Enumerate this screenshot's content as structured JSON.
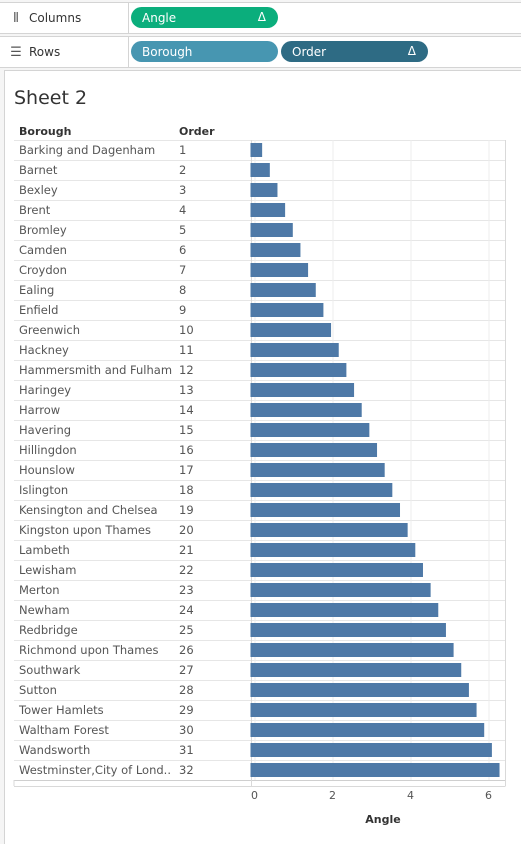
{
  "shelves": {
    "columns": {
      "label": "Columns",
      "icon": "columns-icon",
      "pills": [
        {
          "label": "Angle",
          "symbol": "Δ",
          "color": "#0bae7c"
        }
      ]
    },
    "rows": {
      "label": "Rows",
      "icon": "rows-icon",
      "pills": [
        {
          "label": "Borough",
          "color": "#4796b1"
        },
        {
          "label": "Order",
          "symbol": "Δ",
          "color": "#2e6b84"
        }
      ]
    }
  },
  "sheet": {
    "title": "Sheet 2"
  },
  "chart_data": {
    "type": "bar",
    "orientation": "horizontal",
    "row_headers": [
      "Borough",
      "Order"
    ],
    "categories": [
      "Barking and Dagenham",
      "Barnet",
      "Bexley",
      "Brent",
      "Bromley",
      "Camden",
      "Croydon",
      "Ealing",
      "Enfield",
      "Greenwich",
      "Hackney",
      "Hammersmith and Fulham",
      "Haringey",
      "Harrow",
      "Havering",
      "Hillingdon",
      "Hounslow",
      "Islington",
      "Kensington and Chelsea",
      "Kingston upon Thames",
      "Lambeth",
      "Lewisham",
      "Merton",
      "Newham",
      "Redbridge",
      "Richmond upon Thames",
      "Southwark",
      "Sutton",
      "Tower Hamlets",
      "Waltham Forest",
      "Wandsworth",
      "Westminster,City of Lond.."
    ],
    "order": [
      1,
      2,
      3,
      4,
      5,
      6,
      7,
      8,
      9,
      10,
      11,
      12,
      13,
      14,
      15,
      16,
      17,
      18,
      19,
      20,
      21,
      22,
      23,
      24,
      25,
      26,
      27,
      28,
      29,
      30,
      31,
      32
    ],
    "values": [
      0.196,
      0.393,
      0.589,
      0.785,
      0.982,
      1.178,
      1.374,
      1.571,
      1.767,
      1.963,
      2.16,
      2.356,
      2.553,
      2.749,
      2.945,
      3.142,
      3.338,
      3.534,
      3.731,
      3.927,
      4.123,
      4.32,
      4.516,
      4.712,
      4.909,
      5.105,
      5.301,
      5.498,
      5.694,
      5.89,
      6.087,
      6.283
    ],
    "xlabel": "Angle",
    "xticks": [
      0,
      2,
      4,
      6
    ],
    "xlim": [
      0,
      6.3
    ],
    "bar_color": "#4e79a7",
    "grid": true
  }
}
